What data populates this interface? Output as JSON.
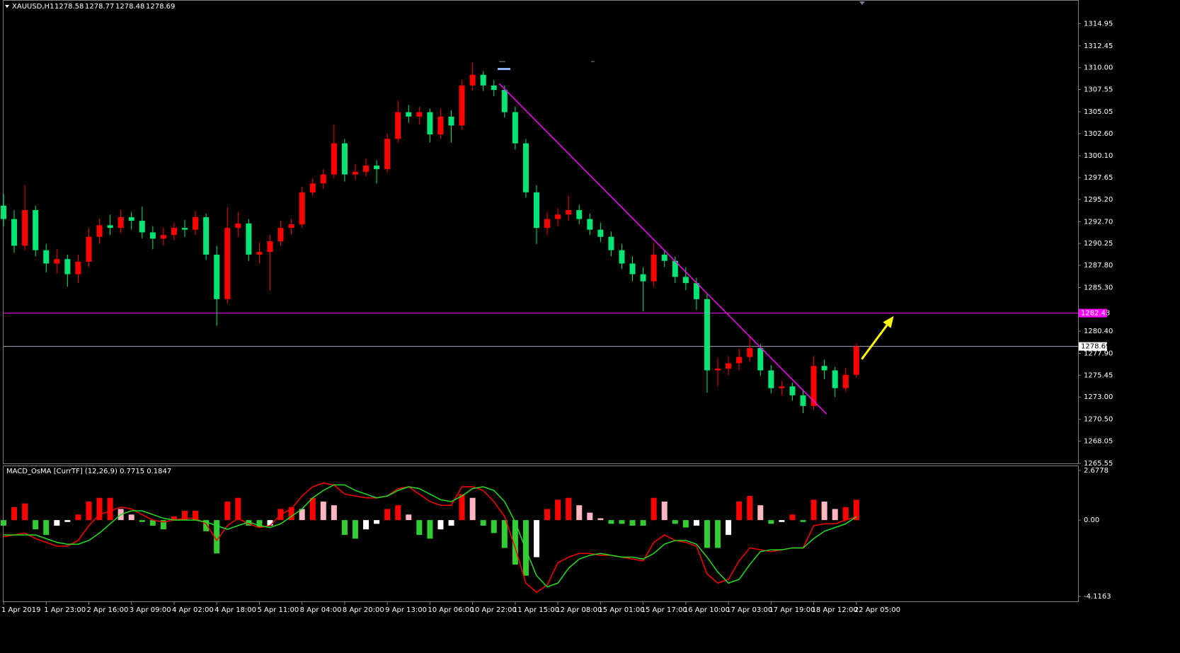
{
  "chart_data": [
    {
      "type": "candlestick",
      "title": "XAUUSD,H1",
      "ohlc_header": [
        1278.58,
        1278.77,
        1278.48,
        1278.69
      ],
      "up_color": "#ff0000",
      "down_color": "#00e676",
      "categories": [
        "1 Apr 2019",
        null,
        null,
        null,
        "1 Apr 23:00",
        null,
        null,
        null,
        "2 Apr 16:00",
        null,
        null,
        null,
        "3 Apr 09:00",
        null,
        null,
        null,
        "4 Apr 02:00",
        null,
        null,
        null,
        "4 Apr 18:00",
        null,
        null,
        null,
        "5 Apr 11:00",
        null,
        null,
        null,
        "8 Apr 04:00",
        null,
        null,
        null,
        "8 Apr 20:00",
        null,
        null,
        null,
        "9 Apr 13:00",
        null,
        null,
        null,
        "10 Apr 06:00",
        null,
        null,
        null,
        "10 Apr 22:00",
        null,
        null,
        null,
        "11 Apr 15:00",
        null,
        null,
        null,
        "12 Apr 08:00",
        null,
        null,
        null,
        "15 Apr 01:00",
        null,
        null,
        null,
        "15 Apr 17:00",
        null,
        null,
        null,
        "16 Apr 10:00",
        null,
        null,
        null,
        "17 Apr 03:00",
        null,
        null,
        null,
        "17 Apr 19:00",
        null,
        null,
        null,
        "18 Apr 12:00",
        null,
        null,
        null,
        "22 Apr 05:00"
      ],
      "open": [
        1294.5,
        1293.0,
        1290.0,
        1294.0,
        1289.5,
        1288.0,
        1288.5,
        1286.8,
        1288.2,
        1291.0,
        1292.3,
        1292.0,
        1293.2,
        1292.8,
        1291.5,
        1290.8,
        1291.2,
        1292.0,
        1291.8,
        1293.2,
        1289.0,
        1284.0,
        1292.0,
        1292.5,
        1289.0,
        1289.3,
        1290.5,
        1292.0,
        1292.4,
        1296.0,
        1297.0,
        1298.0,
        1301.5,
        1298.0,
        1298.3,
        1299.0,
        1298.6,
        1302.0,
        1305.0,
        1304.5,
        1305.0,
        1302.5,
        1304.5,
        1303.5,
        1308.0,
        1309.2,
        1308.0,
        1307.5,
        1305.0,
        1301.5,
        1296.0,
        1292.0,
        1293.0,
        1293.5,
        1294.0,
        1293.0,
        1291.8,
        1291.0,
        1289.5,
        1288.0,
        1286.8,
        1286.0,
        1289.0,
        1288.3,
        1286.5,
        1285.8,
        1284.0,
        1276.0,
        1276.2,
        1276.8,
        1277.5,
        1278.5,
        1276.0,
        1274.0,
        1274.2,
        1273.2,
        1272.0,
        1276.5,
        1276.0,
        1274.0,
        1275.5
      ],
      "high": [
        1295.8,
        1294.0,
        1296.8,
        1294.5,
        1290.2,
        1289.6,
        1289.0,
        1289.0,
        1292.0,
        1293.0,
        1293.5,
        1294.0,
        1293.8,
        1294.4,
        1292.2,
        1292.0,
        1292.6,
        1292.9,
        1293.9,
        1293.6,
        1290.0,
        1294.3,
        1293.8,
        1293.0,
        1290.4,
        1291.2,
        1292.8,
        1293.0,
        1296.6,
        1297.6,
        1298.6,
        1303.6,
        1302.0,
        1299.2,
        1299.8,
        1299.6,
        1302.6,
        1306.3,
        1305.8,
        1305.6,
        1305.4,
        1305.4,
        1305.2,
        1308.6,
        1310.6,
        1309.6,
        1308.6,
        1308.0,
        1305.6,
        1302.0,
        1296.8,
        1293.8,
        1294.2,
        1295.6,
        1294.6,
        1293.6,
        1292.6,
        1291.6,
        1290.2,
        1288.8,
        1287.6,
        1290.3,
        1289.4,
        1288.8,
        1287.6,
        1286.4,
        1284.6,
        1277.4,
        1277.6,
        1278.4,
        1279.8,
        1279.0,
        1276.6,
        1274.8,
        1274.6,
        1273.8,
        1277.6,
        1277.2,
        1276.4,
        1276.2,
        1279.0
      ],
      "low": [
        1292.2,
        1289.2,
        1289.5,
        1288.8,
        1287.0,
        1286.9,
        1285.4,
        1285.8,
        1287.6,
        1290.2,
        1291.2,
        1291.4,
        1291.8,
        1290.8,
        1289.6,
        1290.0,
        1290.6,
        1291.0,
        1291.2,
        1288.4,
        1281.0,
        1283.5,
        1291.0,
        1288.3,
        1288.0,
        1285.0,
        1290.0,
        1291.3,
        1292.0,
        1295.6,
        1296.4,
        1297.6,
        1297.2,
        1297.4,
        1297.8,
        1297.0,
        1298.2,
        1301.6,
        1303.8,
        1303.6,
        1301.6,
        1302.0,
        1301.6,
        1303.0,
        1307.4,
        1307.4,
        1306.8,
        1304.4,
        1300.8,
        1295.4,
        1290.2,
        1291.2,
        1292.2,
        1292.8,
        1292.4,
        1291.2,
        1290.4,
        1288.8,
        1287.4,
        1286.0,
        1282.6,
        1285.4,
        1287.6,
        1285.8,
        1285.0,
        1282.8,
        1273.5,
        1274.2,
        1275.4,
        1276.0,
        1277.0,
        1275.4,
        1273.4,
        1273.2,
        1272.6,
        1271.2,
        1271.6,
        1275.0,
        1273.0,
        1273.6,
        1275.2
      ],
      "close": [
        1293.0,
        1290.0,
        1294.0,
        1289.5,
        1288.0,
        1288.5,
        1286.8,
        1288.2,
        1291.0,
        1292.3,
        1292.0,
        1293.2,
        1292.8,
        1291.5,
        1290.8,
        1291.2,
        1292.0,
        1291.8,
        1293.2,
        1289.0,
        1284.0,
        1292.0,
        1292.5,
        1289.0,
        1289.3,
        1290.5,
        1292.0,
        1292.4,
        1296.0,
        1297.0,
        1298.0,
        1301.5,
        1298.0,
        1298.3,
        1299.0,
        1298.6,
        1302.0,
        1305.0,
        1304.5,
        1305.0,
        1302.5,
        1304.5,
        1303.5,
        1308.0,
        1309.2,
        1308.0,
        1307.5,
        1305.0,
        1301.5,
        1296.0,
        1292.0,
        1293.0,
        1293.5,
        1294.0,
        1293.0,
        1291.8,
        1291.0,
        1289.5,
        1288.0,
        1286.8,
        1286.0,
        1289.0,
        1288.3,
        1286.5,
        1285.8,
        1284.0,
        1276.0,
        1276.2,
        1276.8,
        1277.5,
        1278.5,
        1276.0,
        1274.0,
        1274.2,
        1273.2,
        1272.0,
        1276.5,
        1276.0,
        1274.0,
        1275.5,
        1278.69
      ],
      "ylim": [
        1265.55,
        1317.6
      ],
      "yticks": [
        1314.95,
        1312.45,
        {
          "value": 1310.0,
          "label": "1310.00"
        },
        1307.55,
        1305.05,
        {
          "value": 1302.6,
          "label": "1302.60"
        },
        {
          "value": 1300.1,
          "label": "1300.10"
        },
        1297.65,
        {
          "value": 1295.2,
          "label": "1295.20"
        },
        {
          "value": 1292.7,
          "label": "1292.70"
        },
        1290.25,
        {
          "value": 1287.8,
          "label": "1287.80"
        },
        {
          "value": 1285.3,
          "label": "1285.30"
        },
        {
          "value": 1280.4,
          "label": "1280.40"
        },
        {
          "value": 1277.9,
          "label": "1277.90"
        },
        1275.45,
        {
          "value": 1273.0,
          "label": "1273.00"
        },
        {
          "value": 1270.5,
          "label": "1270.50"
        },
        1268.05,
        1265.55
      ],
      "levels": [
        {
          "value": 1282.43,
          "color": "#ff00ff"
        },
        {
          "value": 1278.69,
          "color": "#a0a0c0"
        }
      ],
      "trendline": {
        "x": [
          46.5,
          77.2
        ],
        "y": [
          1308.2,
          1271.1
        ],
        "color": "#ff00ff"
      },
      "arrow": {
        "x": [
          80.5,
          83.5
        ],
        "y": [
          1277.25,
          1282.1
        ],
        "color": "#ffff00"
      }
    },
    {
      "type": "macd",
      "title": "MACD_OsMA [CurrTF] (12,26,9) 0.7715 0.1847",
      "ylim": [
        -4.384,
        2.945
      ],
      "yticks": [
        2.6778,
        {
          "value": 0,
          "label": "0.00"
        },
        -4.1163
      ],
      "histogram": {
        "colors": [
          "#ff0000",
          "#ffb6c1",
          "#33cc33",
          "#ffffff"
        ],
        "values": [
          -0.3,
          0.7,
          0.9,
          -0.5,
          -0.8,
          -0.3,
          -0.1,
          0.3,
          1.0,
          1.2,
          1.2,
          0.6,
          0.3,
          -0.1,
          -0.3,
          -0.5,
          0.2,
          0.5,
          0.5,
          -0.6,
          -1.8,
          1.0,
          1.2,
          -0.3,
          -0.4,
          -0.3,
          0.6,
          0.7,
          0.6,
          1.2,
          1.0,
          0.8,
          -0.8,
          -1.0,
          -0.5,
          -0.2,
          0.6,
          0.8,
          0.3,
          -0.8,
          -1.0,
          -0.5,
          -0.3,
          1.4,
          1.2,
          -0.3,
          -0.7,
          -1.5,
          -2.4,
          -3.0,
          -2.0,
          0.6,
          1.1,
          1.2,
          0.8,
          0.4,
          0.1,
          -0.2,
          -0.2,
          -0.3,
          -0.3,
          1.2,
          1.0,
          -0.2,
          -0.4,
          -0.3,
          -1.5,
          -1.5,
          -0.8,
          1.0,
          1.3,
          0.8,
          -0.2,
          -0.1,
          0.3,
          -0.1,
          1.1,
          1.0,
          0.6,
          0.7,
          1.1
        ]
      },
      "series": [
        {
          "color": "#ff0000",
          "values": [
            -0.9,
            -0.8,
            -0.7,
            -1.0,
            -1.2,
            -1.4,
            -1.4,
            -1.1,
            -0.3,
            0.3,
            0.5,
            0.7,
            0.6,
            0.3,
            0.0,
            -0.1,
            0.0,
            0.1,
            0.1,
            -0.2,
            -1.1,
            -0.3,
            0.1,
            -0.2,
            -0.4,
            -0.3,
            0.3,
            0.6,
            1.3,
            1.8,
            2.0,
            1.9,
            1.4,
            1.3,
            1.2,
            1.2,
            1.3,
            1.7,
            1.8,
            1.4,
            1.0,
            0.8,
            0.8,
            1.8,
            1.8,
            1.6,
            1.0,
            0.2,
            -1.5,
            -3.4,
            -3.9,
            -3.5,
            -2.3,
            -2.0,
            -1.8,
            -1.8,
            -1.9,
            -1.9,
            -2.0,
            -2.1,
            -2.2,
            -1.2,
            -0.8,
            -1.1,
            -1.2,
            -1.4,
            -2.9,
            -3.4,
            -3.2,
            -2.2,
            -1.5,
            -1.6,
            -1.7,
            -1.6,
            -1.5,
            -1.5,
            -0.3,
            -0.2,
            -0.2,
            0.0,
            0.18
          ]
        },
        {
          "color": "#22dd22",
          "values": [
            -0.8,
            -0.8,
            -0.8,
            -0.8,
            -1.0,
            -1.2,
            -1.3,
            -1.3,
            -1.1,
            -0.7,
            -0.2,
            0.3,
            0.5,
            0.5,
            0.3,
            0.1,
            0.0,
            0.0,
            0.0,
            -0.1,
            -0.3,
            -0.5,
            -0.3,
            -0.1,
            -0.3,
            -0.4,
            -0.2,
            0.2,
            0.6,
            1.2,
            1.6,
            1.9,
            1.9,
            1.6,
            1.4,
            1.2,
            1.3,
            1.6,
            1.8,
            1.7,
            1.4,
            1.1,
            1.0,
            1.3,
            1.7,
            1.8,
            1.6,
            1.0,
            -0.1,
            -1.6,
            -3.0,
            -3.6,
            -3.4,
            -2.6,
            -2.1,
            -1.9,
            -1.8,
            -1.9,
            -2.0,
            -2.0,
            -2.1,
            -1.8,
            -1.3,
            -1.1,
            -1.1,
            -1.3,
            -2.0,
            -2.8,
            -3.4,
            -3.2,
            -2.4,
            -1.7,
            -1.6,
            -1.6,
            -1.5,
            -1.5,
            -1.0,
            -0.6,
            -0.4,
            -0.2,
            0.18
          ]
        }
      ]
    }
  ]
}
